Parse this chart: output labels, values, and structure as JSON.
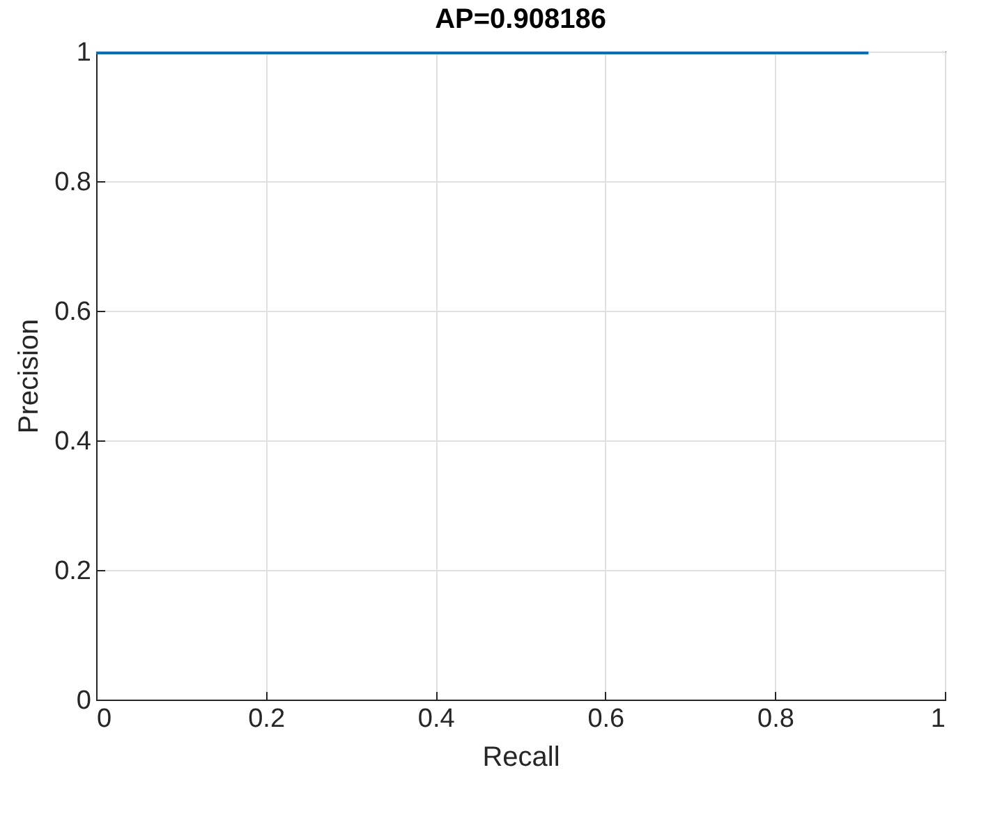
{
  "chart_data": {
    "type": "line",
    "title": "AP=0.908186",
    "xlabel": "Recall",
    "ylabel": "Precision",
    "x": [
      0,
      0.91
    ],
    "series": [
      {
        "color": "#0072bd",
        "values": [
          1,
          1
        ]
      }
    ],
    "xlim": [
      0,
      1
    ],
    "xticks": [
      0,
      0.2,
      0.4,
      0.6,
      0.8,
      1
    ],
    "ylim": [
      0,
      1
    ],
    "yticks": [
      0,
      0.2,
      0.4,
      0.6,
      0.8,
      1
    ],
    "grid": true,
    "marker": "none",
    "line_style": "solid"
  }
}
